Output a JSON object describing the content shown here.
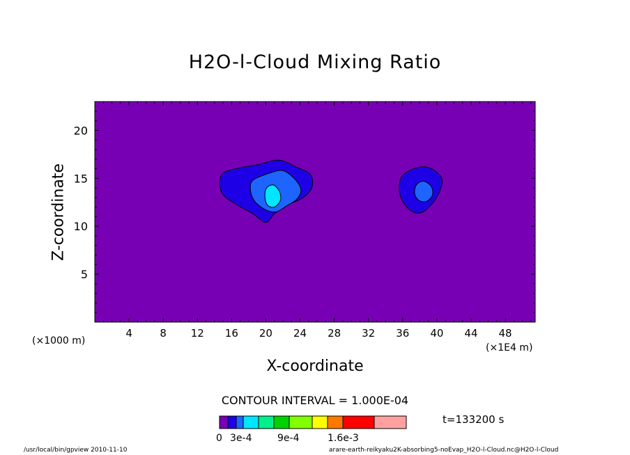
{
  "chart_data": {
    "type": "heatmap",
    "title": "H2O-l-Cloud Mixing Ratio",
    "xlabel": "X-coordinate",
    "ylabel": "Z-coordinate",
    "x_unit_left": "(×1000 m)",
    "x_unit_right": "(×1E4 m)",
    "xlim": [
      0,
      51.5
    ],
    "ylim": [
      0,
      23
    ],
    "xticks": [
      4,
      8,
      12,
      16,
      20,
      24,
      28,
      32,
      36,
      40,
      44,
      48
    ],
    "yticks": [
      5,
      10,
      15,
      20
    ],
    "contour_interval": "CONTOUR INTERVAL = 1.000E-04",
    "time_label": "t=133200 s",
    "background_color": "#7800b4",
    "legend": {
      "colors": [
        "#7800b4",
        "#1e00e6",
        "#1e64ff",
        "#00e6ff",
        "#00f08c",
        "#00d200",
        "#82ff00",
        "#ffff00",
        "#ff7800",
        "#ff0000",
        "#ffa0a0"
      ],
      "labels": [
        "0",
        "3e-4",
        "9e-4",
        "1.6e-3"
      ]
    },
    "contours": [
      {
        "level": 1,
        "color": "#1e00e6",
        "points": [
          [
            15.1,
            15.6
          ],
          [
            17.0,
            16.1
          ],
          [
            19.0,
            16.4
          ],
          [
            21.5,
            16.9
          ],
          [
            23.5,
            16.2
          ],
          [
            25.2,
            15.4
          ],
          [
            25.4,
            14.1
          ],
          [
            24.4,
            13.0
          ],
          [
            22.5,
            12.2
          ],
          [
            21.0,
            11.3
          ],
          [
            20.0,
            10.4
          ],
          [
            18.5,
            11.3
          ],
          [
            16.5,
            12.3
          ],
          [
            15.0,
            13.3
          ],
          [
            14.6,
            14.6
          ]
        ]
      },
      {
        "level": 2,
        "color": "#1e64ff",
        "points": [
          [
            18.5,
            14.8
          ],
          [
            20.3,
            15.5
          ],
          [
            22.0,
            15.8
          ],
          [
            23.4,
            14.9
          ],
          [
            24.1,
            13.8
          ],
          [
            23.6,
            12.8
          ],
          [
            22.4,
            12.1
          ],
          [
            21.2,
            11.5
          ],
          [
            20.0,
            11.7
          ],
          [
            18.7,
            12.6
          ],
          [
            18.2,
            13.8
          ]
        ]
      },
      {
        "level": 3,
        "color": "#00e6ff",
        "points": [
          [
            20.9,
            14.3
          ],
          [
            21.6,
            13.6
          ],
          [
            21.7,
            12.7
          ],
          [
            21.0,
            12.0
          ],
          [
            20.2,
            12.2
          ],
          [
            19.9,
            13.1
          ],
          [
            20.1,
            14.0
          ]
        ]
      },
      {
        "level": 1,
        "color": "#1e00e6",
        "points": [
          [
            36.6,
            15.7
          ],
          [
            38.2,
            16.2
          ],
          [
            39.6,
            15.9
          ],
          [
            40.6,
            14.9
          ],
          [
            40.3,
            13.6
          ],
          [
            39.4,
            12.3
          ],
          [
            38.1,
            11.4
          ],
          [
            37.0,
            11.6
          ],
          [
            36.0,
            12.6
          ],
          [
            35.6,
            13.8
          ],
          [
            35.8,
            15.0
          ]
        ]
      },
      {
        "level": 2,
        "color": "#1e64ff",
        "points": [
          [
            37.6,
            14.3
          ],
          [
            38.4,
            14.7
          ],
          [
            39.3,
            14.2
          ],
          [
            39.5,
            13.3
          ],
          [
            38.8,
            12.6
          ],
          [
            37.9,
            12.7
          ],
          [
            37.4,
            13.4
          ]
        ]
      }
    ]
  },
  "footer": {
    "left": "/usr/local/bin/gpview  2010-11-10",
    "right": "arare-earth-reikyaku2K-absorbing5-noEvap_H2O-l-Cloud.nc@H2O-l-Cloud"
  }
}
